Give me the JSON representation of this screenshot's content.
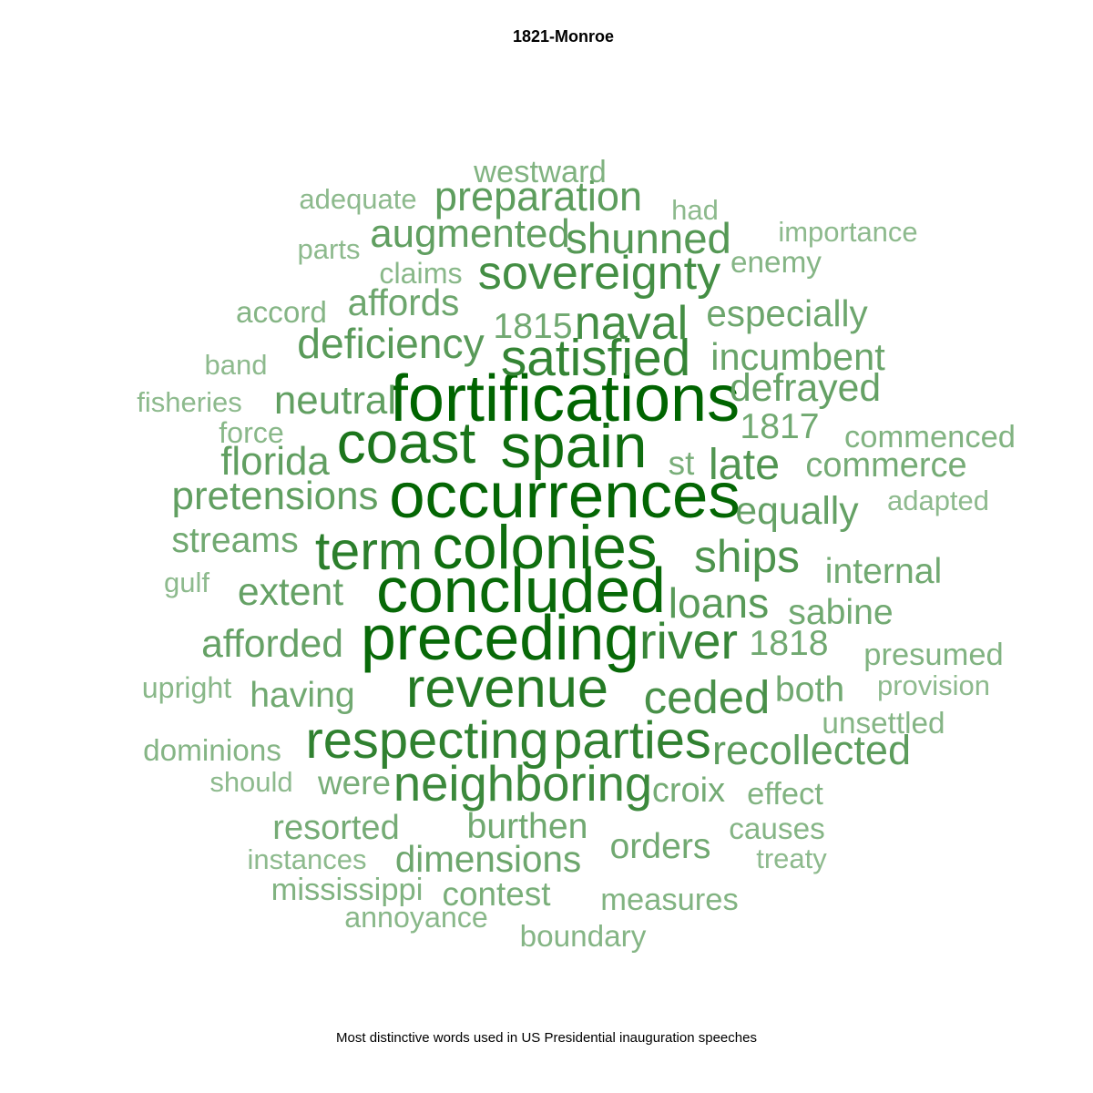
{
  "chart_data": {
    "type": "wordcloud",
    "title": "1821-Monroe",
    "caption": "Most distinctive words used in US Presidential inauguration speeches",
    "colors": {
      "high": "#006400",
      "low": "#8dba8d"
    },
    "words": [
      {
        "word": "fortifications",
        "weight": 1.0
      },
      {
        "word": "occurrences",
        "weight": 0.98
      },
      {
        "word": "concluded",
        "weight": 0.96
      },
      {
        "word": "preceding",
        "weight": 0.96
      },
      {
        "word": "spain",
        "weight": 0.92
      },
      {
        "word": "colonies",
        "weight": 0.92
      },
      {
        "word": "coast",
        "weight": 0.86
      },
      {
        "word": "revenue",
        "weight": 0.82
      },
      {
        "word": "term",
        "weight": 0.78
      },
      {
        "word": "respecting",
        "weight": 0.76
      },
      {
        "word": "parties",
        "weight": 0.76
      },
      {
        "word": "satisfied",
        "weight": 0.74
      },
      {
        "word": "river",
        "weight": 0.72
      },
      {
        "word": "neighboring",
        "weight": 0.7
      },
      {
        "word": "sovereignty",
        "weight": 0.66
      },
      {
        "word": "naval",
        "weight": 0.66
      },
      {
        "word": "ceded",
        "weight": 0.64
      },
      {
        "word": "ships",
        "weight": 0.62
      },
      {
        "word": "late",
        "weight": 0.6
      },
      {
        "word": "shunned",
        "weight": 0.58
      },
      {
        "word": "deficiency",
        "weight": 0.56
      },
      {
        "word": "preparation",
        "weight": 0.54
      },
      {
        "word": "loans",
        "weight": 0.56
      },
      {
        "word": "recollected",
        "weight": 0.54
      },
      {
        "word": "augmented",
        "weight": 0.52
      },
      {
        "word": "neutral",
        "weight": 0.52
      },
      {
        "word": "florida",
        "weight": 0.52
      },
      {
        "word": "pretensions",
        "weight": 0.52
      },
      {
        "word": "afforded",
        "weight": 0.5
      },
      {
        "word": "extent",
        "weight": 0.5
      },
      {
        "word": "defrayed",
        "weight": 0.5
      },
      {
        "word": "equally",
        "weight": 0.5
      },
      {
        "word": "incumbent",
        "weight": 0.48
      },
      {
        "word": "especially",
        "weight": 0.46
      },
      {
        "word": "dimensions",
        "weight": 0.46
      },
      {
        "word": "affords",
        "weight": 0.46
      },
      {
        "word": "1815",
        "weight": 0.44
      },
      {
        "word": "1817",
        "weight": 0.44
      },
      {
        "word": "1818",
        "weight": 0.44
      },
      {
        "word": "streams",
        "weight": 0.44
      },
      {
        "word": "internal",
        "weight": 0.44
      },
      {
        "word": "sabine",
        "weight": 0.44
      },
      {
        "word": "both",
        "weight": 0.44
      },
      {
        "word": "having",
        "weight": 0.44
      },
      {
        "word": "burthen",
        "weight": 0.44
      },
      {
        "word": "orders",
        "weight": 0.44
      },
      {
        "word": "resorted",
        "weight": 0.42
      },
      {
        "word": "croix",
        "weight": 0.42
      },
      {
        "word": "commerce",
        "weight": 0.42
      },
      {
        "word": "st",
        "weight": 0.4
      },
      {
        "word": "were",
        "weight": 0.4
      },
      {
        "word": "contest",
        "weight": 0.4
      },
      {
        "word": "westward",
        "weight": 0.36
      },
      {
        "word": "mississippi",
        "weight": 0.36
      },
      {
        "word": "measures",
        "weight": 0.36
      },
      {
        "word": "effect",
        "weight": 0.36
      },
      {
        "word": "commenced",
        "weight": 0.36
      },
      {
        "word": "presumed",
        "weight": 0.36
      },
      {
        "word": "dominions",
        "weight": 0.34
      },
      {
        "word": "accord",
        "weight": 0.34
      },
      {
        "word": "enemy",
        "weight": 0.34
      },
      {
        "word": "causes",
        "weight": 0.34
      },
      {
        "word": "unsettled",
        "weight": 0.34
      },
      {
        "word": "boundary",
        "weight": 0.34
      },
      {
        "word": "annoyance",
        "weight": 0.32
      },
      {
        "word": "force",
        "weight": 0.32
      },
      {
        "word": "claims",
        "weight": 0.32
      },
      {
        "word": "upright",
        "weight": 0.32
      },
      {
        "word": "fisheries",
        "weight": 0.3
      },
      {
        "word": "band",
        "weight": 0.3
      },
      {
        "word": "had",
        "weight": 0.3
      },
      {
        "word": "importance",
        "weight": 0.3
      },
      {
        "word": "adequate",
        "weight": 0.3
      },
      {
        "word": "parts",
        "weight": 0.3
      },
      {
        "word": "gulf",
        "weight": 0.3
      },
      {
        "word": "adapted",
        "weight": 0.3
      },
      {
        "word": "provision",
        "weight": 0.3
      },
      {
        "word": "should",
        "weight": 0.3
      },
      {
        "word": "instances",
        "weight": 0.3
      },
      {
        "word": "treaty",
        "weight": 0.3
      }
    ]
  }
}
